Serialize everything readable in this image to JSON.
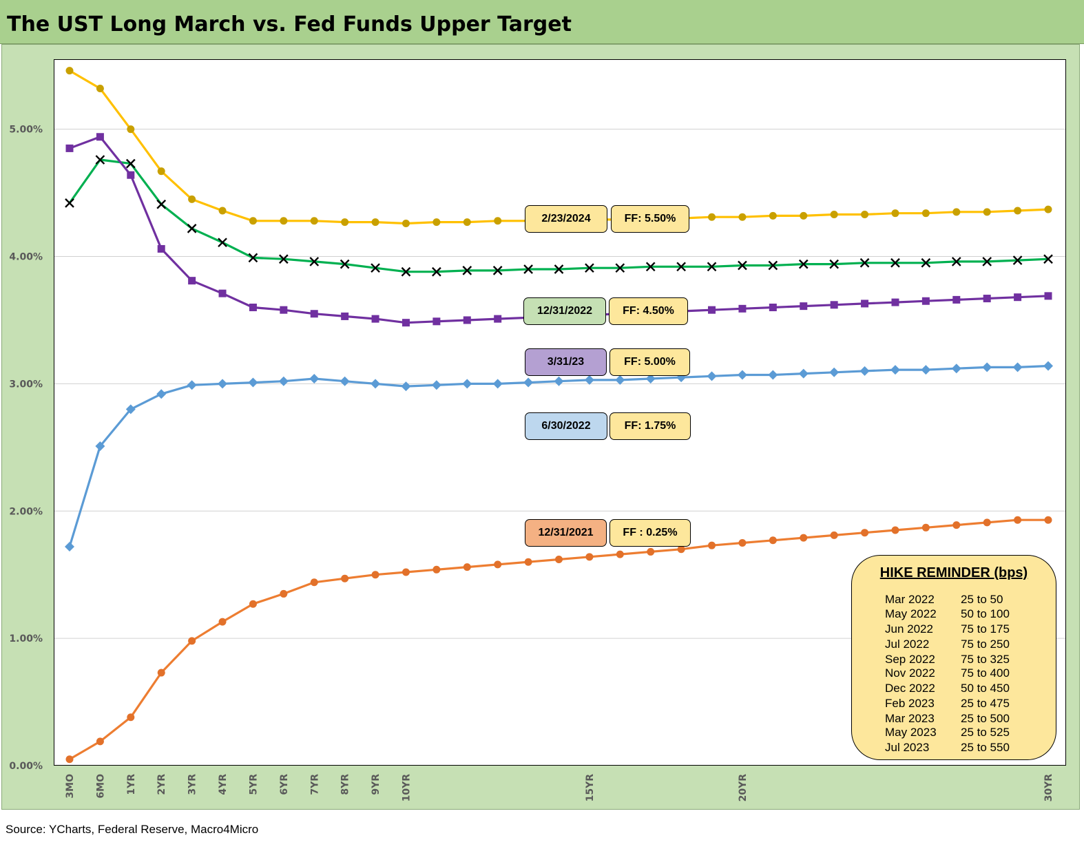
{
  "title": "The UST Long March vs. Fed Funds Upper Target",
  "source": "Source: YCharts, Federal Reserve, Macro4Micro",
  "colors": {
    "header_bg": "#a9d08e",
    "panel_bg": "#c6e0b4",
    "ff_box": "#fde79c"
  },
  "chart_data": {
    "type": "line",
    "categories": [
      "3MO",
      "6MO",
      "1YR",
      "2YR",
      "3YR",
      "4YR",
      "5YR",
      "6YR",
      "7YR",
      "8YR",
      "9YR",
      "10YR",
      "",
      "",
      "",
      "",
      "",
      "15YR",
      "",
      "",
      "",
      "",
      "20YR",
      "",
      "",
      "",
      "",
      "",
      "",
      "",
      "",
      "",
      "30YR"
    ],
    "ylim": [
      0,
      0.0555
    ],
    "yticks": [
      "0.00%",
      "1.00%",
      "2.00%",
      "3.00%",
      "4.00%",
      "5.00%"
    ],
    "ytick_values": [
      0,
      0.01,
      0.02,
      0.03,
      0.04,
      0.05
    ],
    "grid": "horizontal",
    "series": [
      {
        "name": "2/23/2024",
        "ff": "FF: 5.50%",
        "color": "#ffc000",
        "marker": "circle",
        "values": [
          0.0546,
          0.0532,
          0.05,
          0.0467,
          0.0445,
          0.0436,
          0.0428,
          0.0428,
          0.0428,
          0.0427,
          0.0427,
          0.0426,
          0.0427,
          0.0427,
          0.0428,
          0.0428,
          0.0428,
          0.0429,
          0.0429,
          0.043,
          0.043,
          0.0431,
          0.0431,
          0.0432,
          0.0432,
          0.0433,
          0.0433,
          0.0434,
          0.0434,
          0.0435,
          0.0435,
          0.0436,
          0.0437
        ]
      },
      {
        "name": "12/31/2022",
        "ff": "FF: 4.50%",
        "color": "#00b050",
        "marker": "x",
        "values": [
          0.0442,
          0.0476,
          0.0473,
          0.0441,
          0.0422,
          0.0411,
          0.0399,
          0.0398,
          0.0396,
          0.0394,
          0.0391,
          0.0388,
          0.0388,
          0.0389,
          0.0389,
          0.039,
          0.039,
          0.0391,
          0.0391,
          0.0392,
          0.0392,
          0.0392,
          0.0393,
          0.0393,
          0.0394,
          0.0394,
          0.0395,
          0.0395,
          0.0395,
          0.0396,
          0.0396,
          0.0397,
          0.0398
        ]
      },
      {
        "name": "3/31/23",
        "ff": "FF: 5.00%",
        "color": "#7030a0",
        "marker": "square",
        "values": [
          0.0485,
          0.0494,
          0.0464,
          0.0406,
          0.0381,
          0.0371,
          0.036,
          0.0358,
          0.0355,
          0.0353,
          0.0351,
          0.0348,
          0.0349,
          0.035,
          0.0351,
          0.0352,
          0.0353,
          0.0354,
          0.0355,
          0.0356,
          0.0357,
          0.0358,
          0.0359,
          0.036,
          0.0361,
          0.0362,
          0.0363,
          0.0364,
          0.0365,
          0.0366,
          0.0367,
          0.0368,
          0.0369
        ]
      },
      {
        "name": "6/30/2022",
        "ff": "FF: 1.75%",
        "color": "#5b9bd5",
        "marker": "diamond",
        "values": [
          0.0172,
          0.0251,
          0.028,
          0.0292,
          0.0299,
          0.03,
          0.0301,
          0.0302,
          0.0304,
          0.0302,
          0.03,
          0.0298,
          0.0299,
          0.03,
          0.03,
          0.0301,
          0.0302,
          0.0303,
          0.0303,
          0.0304,
          0.0305,
          0.0306,
          0.0307,
          0.0307,
          0.0308,
          0.0309,
          0.031,
          0.0311,
          0.0311,
          0.0312,
          0.0313,
          0.0313,
          0.0314
        ]
      },
      {
        "name": "12/31/2021",
        "ff": "FF : 0.25%",
        "color": "#ed7d31",
        "marker": "circle",
        "values": [
          0.0005,
          0.0019,
          0.0038,
          0.0073,
          0.0098,
          0.0113,
          0.0127,
          0.0135,
          0.0144,
          0.0147,
          0.015,
          0.0152,
          0.0154,
          0.0156,
          0.0158,
          0.016,
          0.0162,
          0.0164,
          0.0166,
          0.0168,
          0.017,
          0.0173,
          0.0175,
          0.0177,
          0.0179,
          0.0181,
          0.0183,
          0.0185,
          0.0187,
          0.0189,
          0.0191,
          0.0193,
          0.0193
        ]
      }
    ]
  },
  "labels": [
    {
      "date": "2/23/2024",
      "date_bg": "#fde79c",
      "ff": "FF: 5.50%"
    },
    {
      "date": "12/31/2022",
      "date_bg": "#c5e0b4",
      "ff": "FF: 4.50%"
    },
    {
      "date": "3/31/23",
      "date_bg": "#b4a0d2",
      "ff": "FF: 5.00%"
    },
    {
      "date": "6/30/2022",
      "date_bg": "#bdd7ee",
      "ff": "FF: 1.75%"
    },
    {
      "date": "12/31/2021",
      "date_bg": "#f4b183",
      "ff": "FF : 0.25%"
    }
  ],
  "hike_reminder": {
    "title": "HIKE REMINDER (bps)",
    "rows": [
      {
        "month": "Mar 2022",
        "value": "25 to 50"
      },
      {
        "month": "May 2022",
        "value": "50 to 100"
      },
      {
        "month": "Jun 2022",
        "value": "75 to 175"
      },
      {
        "month": "Jul 2022",
        "value": "75 to 250"
      },
      {
        "month": "Sep 2022",
        "value": "75 to 325"
      },
      {
        "month": "Nov 2022",
        "value": "75 to 400"
      },
      {
        "month": "Dec 2022",
        "value": "50 to 450"
      },
      {
        "month": "Feb 2023",
        "value": "25 to 475"
      },
      {
        "month": "Mar 2023",
        "value": "25 to 500"
      },
      {
        "month": "May 2023",
        "value": "25 to 525"
      },
      {
        "month": "Jul 2023",
        "value": "25 to 550"
      }
    ]
  }
}
